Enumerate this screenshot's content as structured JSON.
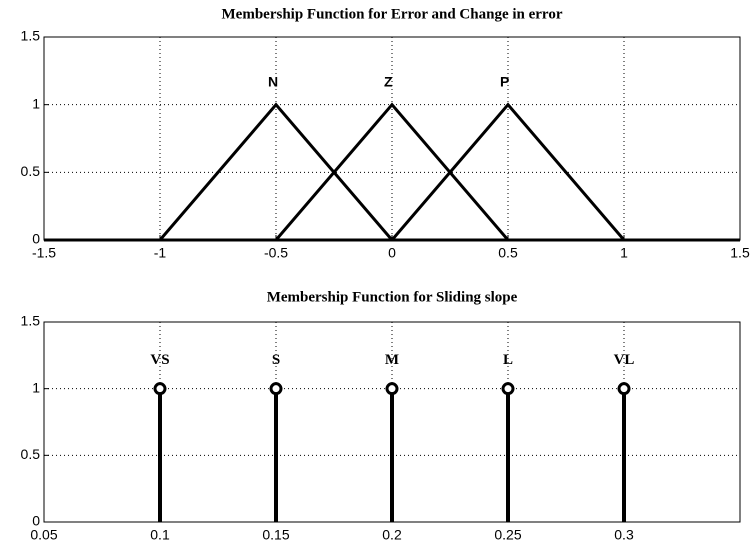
{
  "chart_data": [
    {
      "type": "line",
      "title": "Membership Function for Error and Change  in error",
      "x": [
        -1.5,
        -1,
        -0.5,
        0,
        0.5,
        1,
        1.5
      ],
      "series": [
        {
          "name": "N",
          "color": "#000000",
          "values": [
            0,
            0,
            1,
            0,
            0,
            0,
            0
          ]
        },
        {
          "name": "Z",
          "color": "#000000",
          "values": [
            0,
            0,
            0,
            1,
            0,
            0,
            0
          ]
        },
        {
          "name": "P",
          "color": "#000000",
          "values": [
            0,
            0,
            0,
            0,
            1,
            0,
            0
          ]
        }
      ],
      "xlim": [
        -1.5,
        1.5
      ],
      "ylim": [
        0,
        1.5
      ],
      "xticks": [
        -1.5,
        -1,
        -0.5,
        0,
        0.5,
        1,
        1.5
      ],
      "yticks": [
        0,
        0.5,
        1,
        1.5
      ],
      "grid": true
    },
    {
      "type": "stem",
      "title": "Membership Function for Sliding slope",
      "categories": [
        "VS",
        "S",
        "M",
        "L",
        "VL"
      ],
      "x": [
        0.1,
        0.15,
        0.2,
        0.25,
        0.3
      ],
      "values": [
        1,
        1,
        1,
        1,
        1
      ],
      "color": "#000000",
      "xlim": [
        0.05,
        0.35
      ],
      "ylim": [
        0,
        1.5
      ],
      "xticks": [
        0.05,
        0.1,
        0.15,
        0.2,
        0.25,
        0.3
      ],
      "yticks": [
        0,
        0.5,
        1,
        1.5
      ],
      "grid": true
    }
  ]
}
